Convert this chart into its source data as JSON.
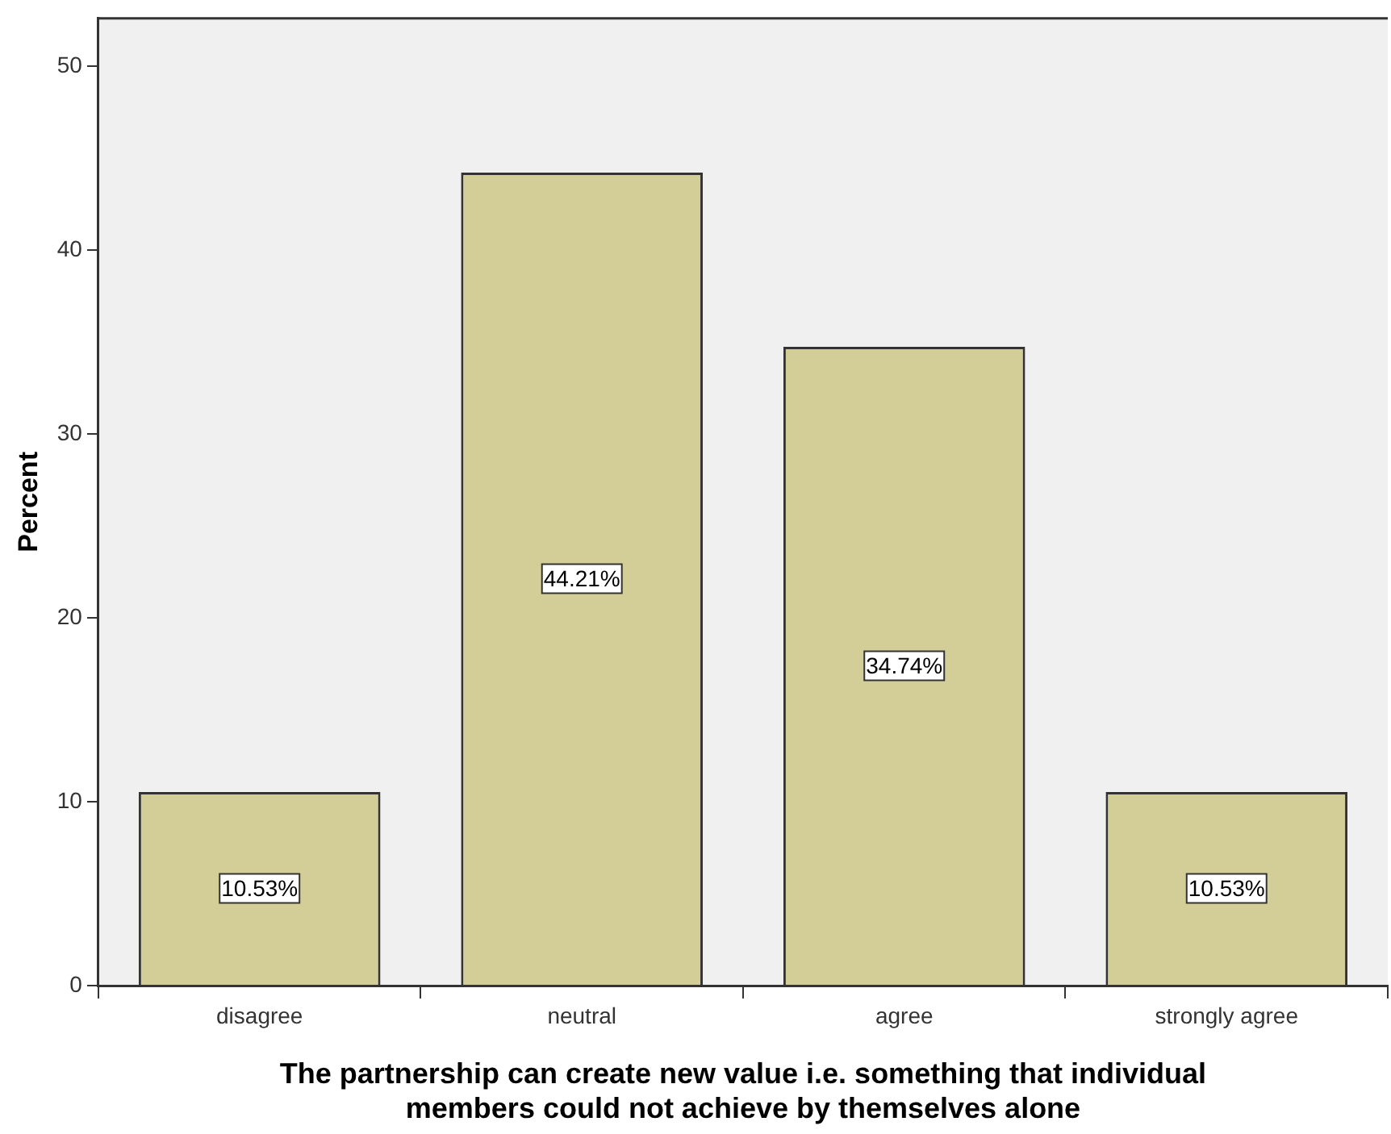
{
  "chart_data": {
    "type": "bar",
    "xlabel": "The partnership can create new value i.e. something that individual\nmembers could not achieve by themselves alone",
    "ylabel": "Percent",
    "categories": [
      "disagree",
      "neutral",
      "agree",
      "strongly agree"
    ],
    "values": [
      10.53,
      44.21,
      34.74,
      10.53
    ],
    "value_labels": [
      "10.53%",
      "44.21%",
      "34.74%",
      "10.53%"
    ],
    "color": "#d3ce97",
    "ylim": [
      0,
      52.6
    ],
    "yticks": [
      0,
      10,
      20,
      30,
      40,
      50
    ],
    "grid": false,
    "legend": false
  }
}
